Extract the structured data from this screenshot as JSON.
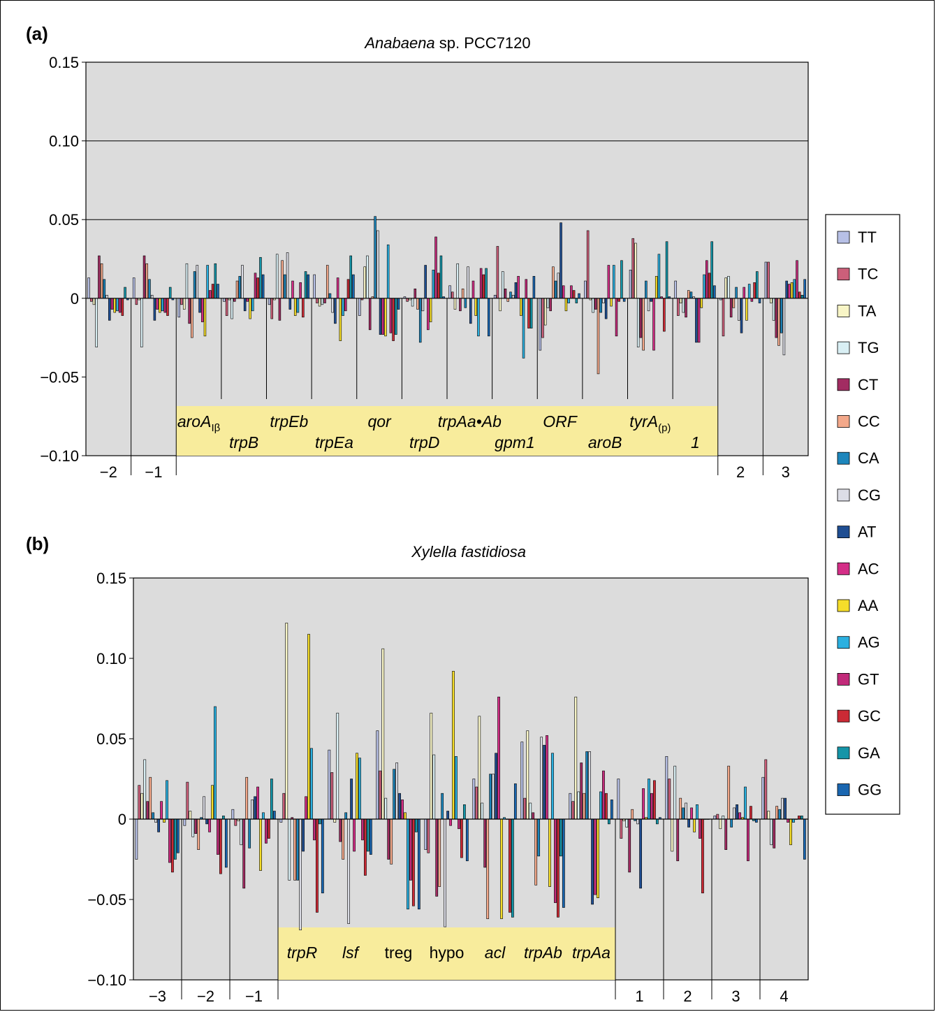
{
  "figure": {
    "legend": [
      {
        "name": "TT",
        "color": "#b7c0e6"
      },
      {
        "name": "TC",
        "color": "#cc5f7a"
      },
      {
        "name": "TA",
        "color": "#f8f5c6"
      },
      {
        "name": "TG",
        "color": "#d9eff4"
      },
      {
        "name": "CT",
        "color": "#a22c62"
      },
      {
        "name": "CC",
        "color": "#f3a88a"
      },
      {
        "name": "CA",
        "color": "#1d86bc"
      },
      {
        "name": "CG",
        "color": "#dcdde6"
      },
      {
        "name": "AT",
        "color": "#1f4e92"
      },
      {
        "name": "AC",
        "color": "#d42e87"
      },
      {
        "name": "AA",
        "color": "#f5dd2a"
      },
      {
        "name": "AG",
        "color": "#2bb0e0"
      },
      {
        "name": "GT",
        "color": "#c22a7a"
      },
      {
        "name": "GC",
        "color": "#cb2a35"
      },
      {
        "name": "GA",
        "color": "#1595a8"
      },
      {
        "name": "GG",
        "color": "#1a66b0"
      }
    ]
  },
  "chart_data": [
    {
      "type": "bar",
      "panel_label": "(a)",
      "title_italic": "Anabaena",
      "title_rest": " sp. PCC7120",
      "ylim": [
        -0.1,
        0.15
      ],
      "yticks": [
        0.15,
        0.1,
        0.05,
        0,
        -0.05,
        -0.1
      ],
      "ytick_labels": [
        "0.15",
        "0.10",
        "0.05",
        "0",
        "−0.05",
        "−0.10"
      ],
      "gridlines": [
        0.1,
        0.05
      ],
      "series_order": [
        "TT",
        "TC",
        "TA",
        "TG",
        "CT",
        "CC",
        "CA",
        "CG",
        "AT",
        "AC",
        "AA",
        "AG",
        "GT",
        "GC",
        "GA",
        "GG"
      ],
      "segments": [
        {
          "label": "−2",
          "values": [
            0.013,
            -0.002,
            -0.004,
            -0.031,
            0.027,
            0.022,
            0.012,
            0.002,
            -0.014,
            -0.007,
            -0.009,
            -0.008,
            -0.009,
            -0.011,
            0.007,
            -0.001
          ]
        },
        {
          "label": "−1",
          "values": [
            0.013,
            -0.004,
            -0.001,
            -0.031,
            0.027,
            0.022,
            0.012,
            0.002,
            -0.014,
            -0.007,
            -0.009,
            -0.008,
            -0.009,
            -0.011,
            0.007,
            -0.001
          ]
        },
        {
          "label": "aroA",
          "sub": "Iβ",
          "values": [
            -0.012,
            -0.004,
            -0.007,
            0.022,
            -0.016,
            -0.025,
            0.017,
            0.021,
            -0.009,
            -0.015,
            -0.024,
            0.021,
            0.005,
            0.009,
            0.022,
            0.009
          ]
        },
        {
          "label": "trpB",
          "values": [
            -0.002,
            -0.011,
            -0.001,
            -0.013,
            -0.002,
            0.011,
            0.014,
            0.021,
            -0.008,
            -0.002,
            -0.013,
            -0.008,
            0.016,
            0.013,
            0.026,
            0.015
          ]
        },
        {
          "label": "trpEb",
          "values": [
            -0.004,
            -0.013,
            -0.001,
            0.028,
            -0.014,
            0.024,
            0.015,
            0.029,
            -0.007,
            0.011,
            -0.011,
            -0.009,
            0.01,
            -0.012,
            0.017,
            0.015
          ]
        },
        {
          "label": "trpEa",
          "values": [
            0.015,
            -0.003,
            -0.005,
            -0.004,
            -0.003,
            0.021,
            0.003,
            -0.009,
            -0.016,
            0.013,
            -0.027,
            -0.011,
            -0.008,
            0.012,
            0.027,
            0.015
          ]
        },
        {
          "label": "qor",
          "values": [
            -0.011,
            -0.001,
            0.02,
            0.027,
            -0.02,
            0.001,
            0.052,
            0.043,
            -0.023,
            -0.023,
            -0.024,
            0.034,
            -0.022,
            -0.027,
            -0.023,
            -0.007
          ]
        },
        {
          "label": "trpD",
          "values": [
            0.001,
            -0.002,
            -0.001,
            -0.005,
            0.006,
            -0.007,
            -0.028,
            -0.008,
            0.021,
            -0.02,
            -0.015,
            0.018,
            0.039,
            0.016,
            0.027,
            0.001
          ]
        },
        {
          "label": "trpAa•Ab",
          "values": [
            0.008,
            0.004,
            -0.007,
            0.022,
            -0.008,
            0.006,
            -0.006,
            0.02,
            -0.016,
            0.011,
            -0.011,
            -0.024,
            0.019,
            0.015,
            0.019,
            -0.024
          ]
        },
        {
          "label": "gpm1",
          "values": [
            0.002,
            0.033,
            -0.008,
            0.017,
            0.006,
            -0.002,
            0.004,
            0.002,
            0.01,
            0.014,
            -0.011,
            -0.038,
            0.012,
            -0.019,
            -0.019,
            0.014
          ]
        },
        {
          "label": "ORF",
          "values": [
            -0.033,
            -0.025,
            -0.017,
            -0.006,
            -0.008,
            0.02,
            0.011,
            0.016,
            0.048,
            0.008,
            -0.008,
            -0.003,
            0.008,
            0.005,
            -0.003,
            0.003
          ]
        },
        {
          "label": "aroB",
          "values": [
            0.011,
            0.043,
            -0.001,
            -0.009,
            -0.007,
            -0.048,
            -0.009,
            -0.003,
            -0.013,
            0.021,
            -0.005,
            0.021,
            -0.024,
            -0.002,
            0.024,
            -0.002
          ]
        },
        {
          "label": "tyrA",
          "sub": "(p)",
          "values": [
            0.018,
            0.038,
            0.035,
            -0.031,
            -0.025,
            -0.033,
            0.011,
            -0.008,
            -0.002,
            -0.033,
            0.014,
            0.028,
            0.001,
            -0.021,
            0.036,
            0.001
          ]
        },
        {
          "label": "1",
          "values": [
            0.011,
            -0.011,
            -0.003,
            -0.009,
            -0.012,
            0.005,
            0.004,
            0.001,
            -0.028,
            -0.028,
            -0.006,
            0.015,
            0.024,
            0.016,
            0.036,
            0.008
          ]
        },
        {
          "label": "2",
          "values": [
            -0.001,
            -0.024,
            0.013,
            0.014,
            -0.012,
            -0.006,
            0.007,
            -0.014,
            -0.022,
            0.007,
            -0.014,
            0.009,
            -0.002,
            0.01,
            0.017,
            -0.003
          ]
        },
        {
          "label": "3",
          "values": [
            0.023,
            0.023,
            -0.003,
            -0.014,
            -0.025,
            -0.03,
            -0.022,
            -0.036,
            0.011,
            0.009,
            0.01,
            0.012,
            0.024,
            0.004,
            0.002,
            0.012
          ]
        }
      ],
      "separators": [
        1,
        2,
        3,
        4,
        5,
        6,
        7,
        8,
        9,
        10,
        11,
        12,
        13,
        14,
        15
      ],
      "operon": {
        "start": 2,
        "end": 13
      }
    },
    {
      "type": "bar",
      "panel_label": "(b)",
      "title_italic": "Xylella fastidiosa",
      "title_rest": "",
      "ylim": [
        -0.1,
        0.15
      ],
      "yticks": [
        0.15,
        0.1,
        0.05,
        0,
        -0.05,
        -0.1
      ],
      "ytick_labels": [
        "0.15",
        "0.10",
        "0.05",
        "0",
        "−0.05",
        "−0.10"
      ],
      "gridlines": [],
      "series_order": [
        "TT",
        "TC",
        "TA",
        "TG",
        "CT",
        "CC",
        "CA",
        "CG",
        "AT",
        "AC",
        "AA",
        "AG",
        "GT",
        "GC",
        "GA",
        "GG"
      ],
      "segments": [
        {
          "label": "−3",
          "values": [
            -0.025,
            0.021,
            0.016,
            0.037,
            0.011,
            0.026,
            0.004,
            -0.002,
            -0.008,
            0.011,
            -0.002,
            0.024,
            -0.027,
            -0.033,
            -0.025,
            -0.021
          ]
        },
        {
          "label": "−2",
          "values": [
            -0.004,
            0.023,
            0.005,
            -0.011,
            -0.009,
            -0.019,
            0.001,
            0.014,
            -0.003,
            -0.008,
            0.021,
            0.07,
            -0.022,
            -0.034,
            0.002,
            -0.03
          ]
        },
        {
          "label": "−1",
          "values": [
            0.006,
            -0.004,
            -0.001,
            -0.016,
            -0.043,
            0.026,
            -0.018,
            0.012,
            0.014,
            0.02,
            -0.032,
            0.004,
            -0.015,
            -0.012,
            0.025,
            0.005
          ]
        },
        {
          "label": "trpR",
          "values": [
            -0.002,
            0.016,
            0.122,
            -0.038,
            0.001,
            -0.038,
            -0.038,
            -0.069,
            -0.02,
            0.014,
            0.115,
            0.044,
            -0.013,
            -0.058,
            -0.003,
            -0.046
          ]
        },
        {
          "label": "lsf",
          "values": [
            0.043,
            0.029,
            -0.002,
            0.066,
            -0.014,
            -0.025,
            0.004,
            -0.065,
            0.025,
            -0.02,
            0.041,
            0.038,
            -0.013,
            -0.035,
            -0.02,
            -0.022
          ]
        },
        {
          "label": "treg",
          "values": [
            0.055,
            0.03,
            0.106,
            0.013,
            -0.025,
            -0.028,
            0.031,
            0.035,
            0.016,
            0.012,
            0.004,
            -0.056,
            -0.038,
            -0.054,
            -0.008,
            -0.056
          ]
        },
        {
          "label": "hypo",
          "values": [
            -0.019,
            -0.021,
            0.066,
            0.04,
            -0.048,
            -0.042,
            0.016,
            -0.067,
            0.005,
            -0.004,
            0.092,
            0.039,
            -0.006,
            -0.024,
            0.009,
            -0.026
          ]
        },
        {
          "label": "acl",
          "values": [
            0.025,
            0.02,
            0.064,
            0.01,
            -0.03,
            -0.062,
            0.028,
            0.028,
            0.041,
            0.076,
            -0.062,
            0.001,
            0.0,
            -0.058,
            -0.061,
            0.022
          ]
        },
        {
          "label": "trpAb",
          "values": [
            0.048,
            0.013,
            0.055,
            0.01,
            0.004,
            -0.041,
            -0.023,
            0.051,
            0.046,
            0.052,
            -0.042,
            0.041,
            -0.052,
            -0.061,
            -0.023,
            -0.055
          ]
        },
        {
          "label": "trpAa",
          "values": [
            0.016,
            0.011,
            0.076,
            0.017,
            0.035,
            0.016,
            0.042,
            0.042,
            -0.053,
            -0.047,
            -0.049,
            0.017,
            0.03,
            0.016,
            -0.003,
            0.012
          ]
        },
        {
          "label": "1",
          "values": [
            0.025,
            -0.012,
            -0.001,
            -0.005,
            -0.033,
            0.006,
            -0.001,
            -0.003,
            -0.043,
            0.019,
            0.001,
            0.025,
            0.016,
            0.024,
            -0.003,
            0.001
          ]
        },
        {
          "label": "2",
          "values": [
            0.039,
            0.025,
            -0.02,
            0.033,
            -0.026,
            0.013,
            0.007,
            0.01,
            -0.005,
            0.007,
            -0.008,
            0.009,
            -0.012,
            -0.046,
            0.0,
            0.0
          ]
        },
        {
          "label": "3",
          "values": [
            0.002,
            0.003,
            -0.006,
            0.002,
            -0.019,
            0.033,
            -0.005,
            0.007,
            0.009,
            0.004,
            0.001,
            0.02,
            -0.026,
            0.008,
            -0.001,
            -0.002
          ]
        },
        {
          "label": "4",
          "values": [
            0.026,
            0.037,
            0.005,
            -0.016,
            -0.018,
            0.008,
            0.006,
            0.013,
            0.013,
            -0.002,
            -0.016,
            -0.002,
            0.0,
            0.002,
            0.002,
            -0.025
          ]
        }
      ],
      "separators": [
        1,
        2,
        3,
        10,
        11,
        12,
        13
      ],
      "operon": {
        "start": 3,
        "end": 9
      }
    }
  ]
}
